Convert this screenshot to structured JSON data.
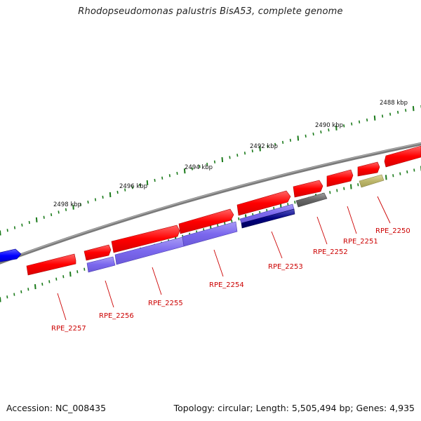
{
  "title": "Rhodopseudomonas palustris BisA53, complete genome",
  "footer": {
    "accession": "Accession: NC_008435",
    "summary": "Topology: circular; Length: 5,505,494 bp; Genes: 4,935"
  },
  "colors": {
    "backbone": "#7a7a7a",
    "tick": "#1a7a1a",
    "gene_red": "#ff0000",
    "gene_purple": "#7b68ee",
    "gene_navy": "#000080",
    "gene_gray": "#666666",
    "gene_olive": "#bdb76b",
    "gene_blue": "#0000ff",
    "label": "#cc0000"
  },
  "kbp_labels": [
    "2488 kbp",
    "2490 kbp",
    "2492 kbp",
    "2494 kbp",
    "2496 kbp",
    "2498 kbp"
  ],
  "gene_labels": [
    "RPE_2250",
    "RPE_2251",
    "RPE_2252",
    "RPE_2253",
    "RPE_2254",
    "RPE_2255",
    "RPE_2256",
    "RPE_2257"
  ]
}
